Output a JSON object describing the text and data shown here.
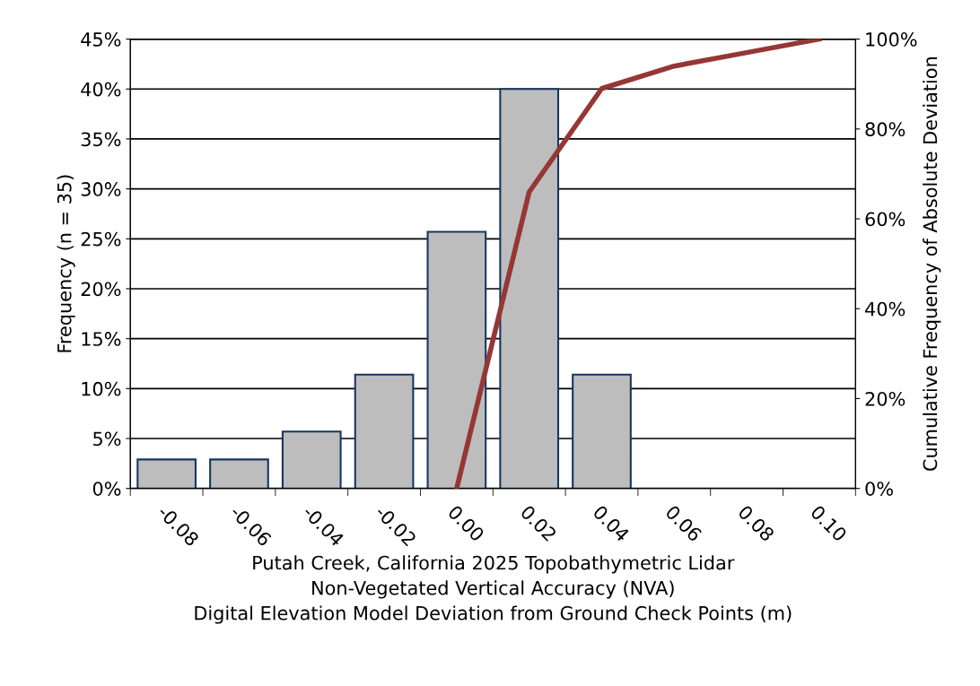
{
  "chart_data": {
    "type": "bar",
    "categories": [
      "-0.08",
      "-0.06",
      "-0.04",
      "-0.02",
      "0.00",
      "0.02",
      "0.04",
      "0.06",
      "0.08",
      "0.10"
    ],
    "series": [
      {
        "color": "#bdbdbd",
        "values": [
          2.9,
          2.9,
          5.7,
          11.4,
          25.7,
          40,
          11.4,
          null,
          null,
          null
        ]
      },
      {
        "type": "line",
        "axis": "y2",
        "color": "#953735",
        "values": [
          null,
          null,
          null,
          null,
          0,
          66,
          89,
          94,
          97,
          100
        ]
      }
    ],
    "xlabel": "Putah Creek, California 2025 Topobathymetric Lidar\nNon-Vegetated Vertical Accuracy (NVA)\nDigital Elevation Model Deviation from Ground Check Points (m)",
    "ylabel": "Frequency (n = 35)",
    "y2label": "Cumulative Frequency of Absolute Deviation",
    "ylim": [
      0,
      45
    ],
    "yticks": [
      {
        "value": 0,
        "label": "0%"
      },
      {
        "value": 5,
        "label": "5%"
      },
      {
        "value": 10,
        "label": "10%"
      },
      {
        "value": 15,
        "label": "15%"
      },
      {
        "value": 20,
        "label": "20%"
      },
      {
        "value": 25,
        "label": "25%"
      },
      {
        "value": 30,
        "label": "30%"
      },
      {
        "value": 35,
        "label": "35%"
      },
      {
        "value": 40,
        "label": "40%"
      },
      {
        "value": 45,
        "label": "45%"
      }
    ],
    "y2lim": [
      0,
      100
    ],
    "y2ticks": [
      {
        "value": 0,
        "label": "0%"
      },
      {
        "value": 20,
        "label": "20%"
      },
      {
        "value": 40,
        "label": "40%"
      },
      {
        "value": 60,
        "label": "60%"
      },
      {
        "value": 80,
        "label": "80%"
      },
      {
        "value": 100,
        "label": "100%"
      }
    ],
    "grid": "y",
    "marker": "none",
    "line_style": "solid"
  }
}
